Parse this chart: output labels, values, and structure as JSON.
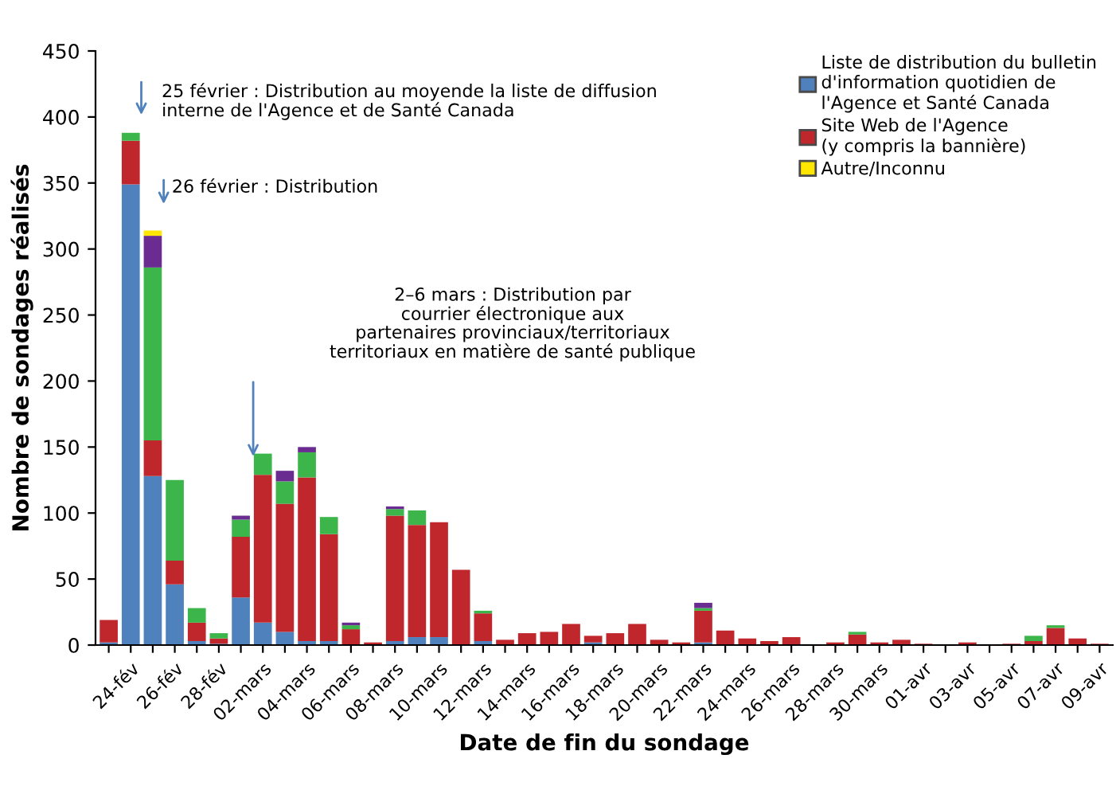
{
  "chart_data": {
    "type": "bar",
    "stacked": true,
    "xlabel": "Date de fin du sondage",
    "ylabel": "Nombre de sondages réalisés",
    "categories": [
      null,
      "24-fév",
      null,
      "26-fév",
      null,
      "28-fév",
      null,
      "02-mars",
      null,
      "04-mars",
      null,
      "06-mars",
      null,
      "08-mars",
      null,
      "10-mars",
      null,
      "12-mars",
      null,
      "14-mars",
      null,
      "16-mars",
      null,
      "18-mars",
      null,
      "20-mars",
      null,
      "22-mars",
      null,
      "24-mars",
      null,
      "26-mars",
      null,
      "28-mars",
      null,
      "30-mars",
      null,
      "01-avr",
      null,
      "03-avr",
      null,
      "05-avr",
      null,
      "07-avr",
      null,
      "09-avr"
    ],
    "series": [
      {
        "name": "Liste de distribution du bulletin\nd'information quotidien de\nl'Agence et Santé Canada",
        "color": "#4f81bd",
        "values": [
          2,
          349,
          128,
          46,
          3,
          1,
          36,
          17,
          10,
          3,
          3,
          0,
          0,
          3,
          6,
          6,
          0,
          3,
          0,
          0,
          0,
          0,
          2,
          0,
          0,
          0,
          0,
          2,
          0,
          0,
          0,
          0,
          0,
          0,
          0,
          0,
          0,
          0,
          0,
          0,
          0,
          0,
          0,
          0,
          0,
          0
        ]
      },
      {
        "name": "Site Web de l'Agence\n(y compris la bannière)",
        "color": "#c0272d",
        "values": [
          17,
          33,
          27,
          18,
          14,
          4,
          46,
          112,
          97,
          124,
          81,
          12,
          2,
          95,
          85,
          87,
          57,
          21,
          4,
          9,
          10,
          16,
          5,
          9,
          16,
          4,
          2,
          24,
          11,
          5,
          3,
          6,
          0,
          2,
          8,
          2,
          4,
          1,
          0,
          2,
          0,
          1,
          3,
          13,
          5,
          1
        ]
      },
      {
        "color": "#3cb54a",
        "values": [
          0,
          6,
          131,
          61,
          11,
          4,
          13,
          16,
          17,
          19,
          13,
          3,
          0,
          5,
          11,
          0,
          0,
          2,
          0,
          0,
          0,
          0,
          0,
          0,
          0,
          0,
          0,
          2,
          0,
          0,
          0,
          0,
          0,
          0,
          2,
          0,
          0,
          0,
          0,
          0,
          0,
          0,
          4,
          2,
          0,
          0
        ]
      },
      {
        "color": "#6a2c91",
        "values": [
          0,
          0,
          24,
          0,
          0,
          0,
          3,
          0,
          8,
          4,
          0,
          2,
          0,
          2,
          0,
          0,
          0,
          0,
          0,
          0,
          0,
          0,
          0,
          0,
          0,
          0,
          0,
          4,
          0,
          0,
          0,
          0,
          0,
          0,
          0,
          0,
          0,
          0,
          0,
          0,
          0,
          0,
          0,
          0,
          0,
          0
        ]
      },
      {
        "name": "Autre/Inconnu",
        "color": "#ffe600",
        "values": [
          0,
          0,
          4,
          0,
          0,
          0,
          0,
          0,
          0,
          0,
          0,
          0,
          0,
          0,
          0,
          0,
          0,
          0,
          0,
          0,
          0,
          0,
          0,
          0,
          0,
          0,
          0,
          0,
          0,
          0,
          0,
          0,
          0,
          0,
          0,
          0,
          0,
          0,
          0,
          0,
          0,
          0,
          0,
          0,
          0,
          0
        ]
      }
    ],
    "ylim": [
      0,
      450
    ],
    "yticks": [
      0,
      50,
      100,
      150,
      200,
      250,
      300,
      350,
      400,
      450
    ],
    "legend": "top right",
    "grid": false,
    "annotations": [
      "25 février : Distribution au moyende la liste de diffusion\ninterne de l'Agence et de Santé Canada",
      "26 février : Distribution",
      "2–6 mars : Distribution par\ncourrier électronique aux\npartenaires provinciaux/territoriaux\nterritoriaux en matière de santé publique"
    ]
  }
}
